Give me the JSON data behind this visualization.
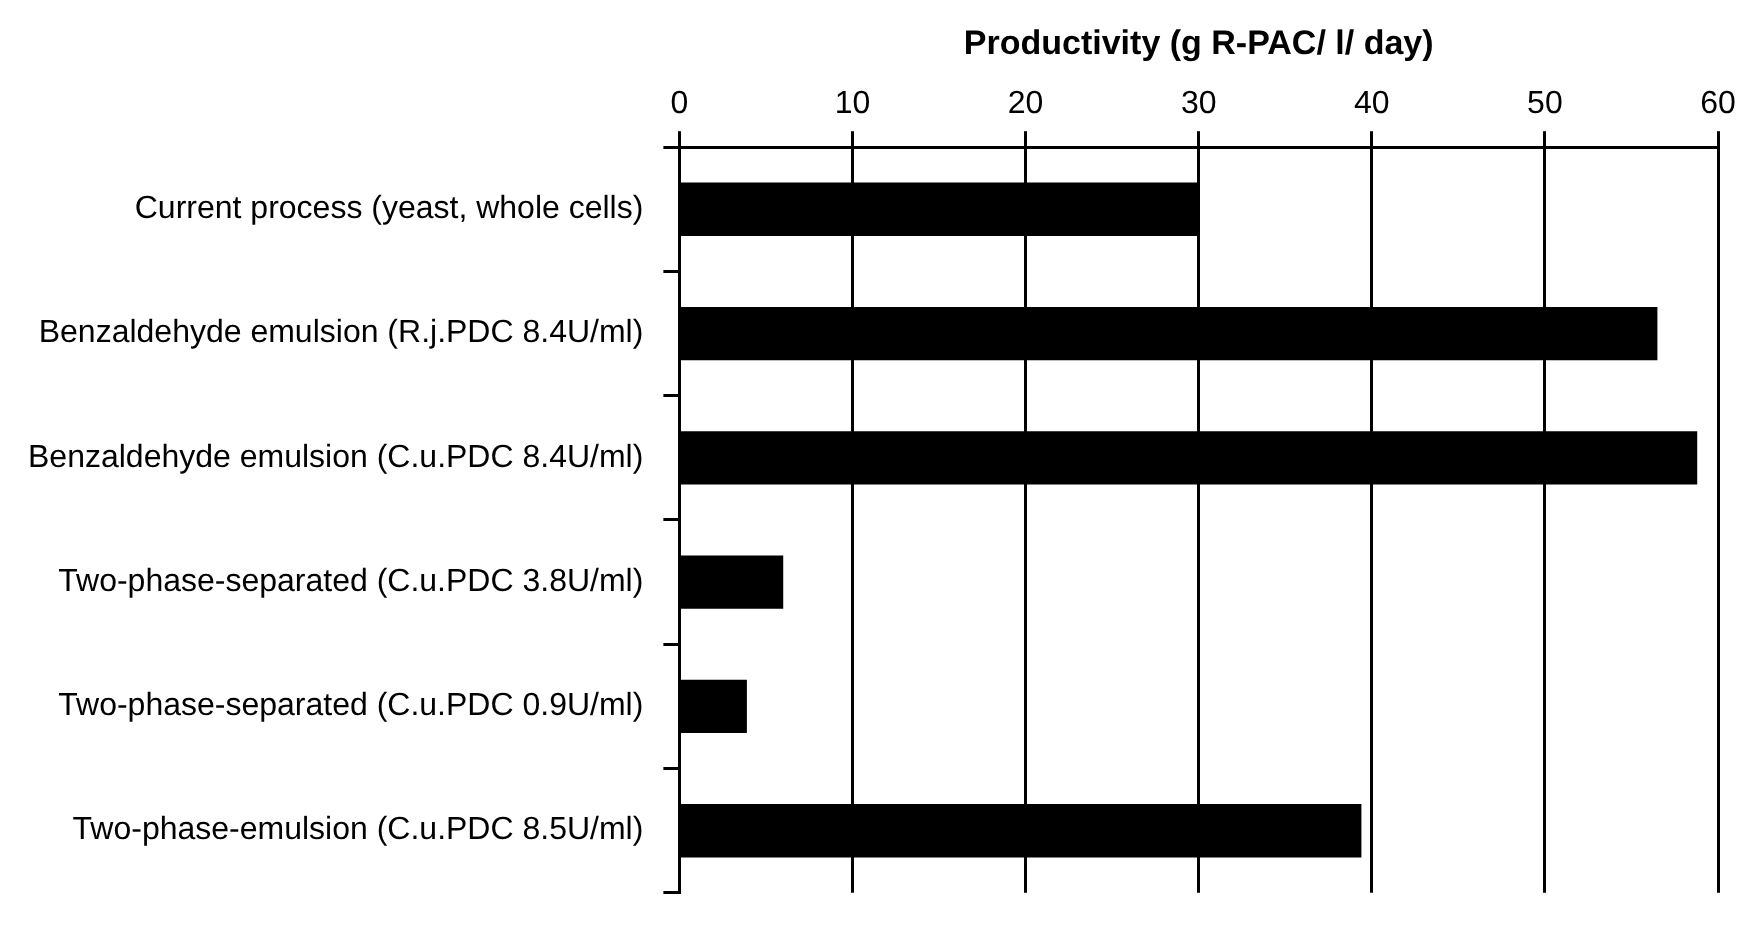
{
  "chart_data": {
    "type": "bar",
    "orientation": "horizontal",
    "xlabel": "Productivity (g R-PAC/ l/ day)",
    "categories": [
      "Current process (yeast, whole cells)",
      "Benzaldehyde emulsion (R.j.PDC 8.4U/ml)",
      "Benzaldehyde emulsion (C.u.PDC 8.4U/ml)",
      "Two-phase-separated (C.u.PDC 3.8U/ml)",
      "Two-phase-separated (C.u.PDC 0.9U/ml)",
      "Two-phase-emulsion (C.u.PDC 8.5U/ml)"
    ],
    "values": [
      30,
      56.5,
      58.8,
      6,
      3.9,
      39.4
    ],
    "color": "#000000",
    "xlim": [
      0,
      60
    ],
    "xticks": [
      0,
      10,
      20,
      30,
      40,
      50,
      60
    ],
    "grid": "x",
    "legend": false
  }
}
